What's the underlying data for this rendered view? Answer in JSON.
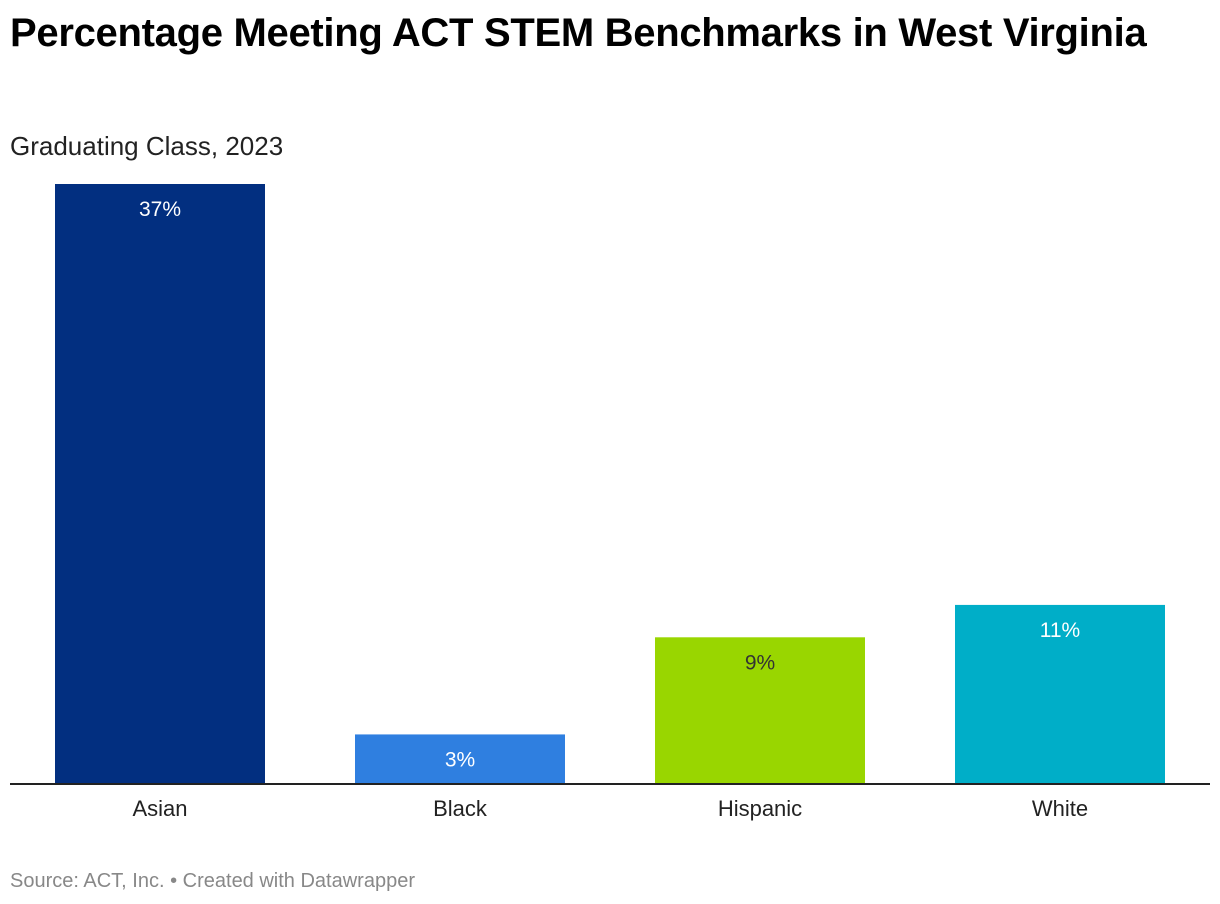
{
  "title": "Percentage Meeting ACT STEM Benchmarks in West Virginia",
  "subtitle": "Graduating Class, 2023",
  "footer": {
    "source": "Source: ACT, Inc.",
    "separator": "•",
    "credit": "Created with Datawrapper"
  },
  "chart_data": {
    "type": "bar",
    "title": "Percentage Meeting ACT STEM Benchmarks in West Virginia",
    "subtitle": "Graduating Class, 2023",
    "xlabel": "",
    "ylabel": "",
    "categories": [
      "Asian",
      "Black",
      "Hispanic",
      "White"
    ],
    "values": [
      37,
      3,
      9,
      11
    ],
    "value_labels": [
      "37%",
      "3%",
      "9%",
      "11%"
    ],
    "colors": [
      "#022f80",
      "#2f7fe0",
      "#99d600",
      "#00aec8"
    ],
    "label_colors": [
      "#ffffff",
      "#ffffff",
      "#333333",
      "#ffffff"
    ],
    "ylim": [
      0,
      37
    ],
    "grid": false,
    "legend": "none"
  }
}
